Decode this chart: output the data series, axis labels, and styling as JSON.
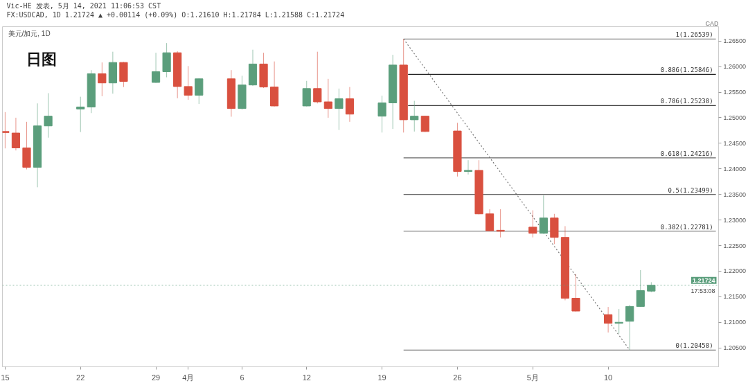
{
  "chart_data": {
    "type": "candlestick",
    "title": "Vic-HE 发表, 5月 14, 2021 11:06:53 CST",
    "subtitle": "FX:USDCAD, 1D 1.21724 ▲ +0.00114 (+0.09%) O:1.21610 H:1.21784 L:1.21588 C:1.21724",
    "ylabel": "CAD",
    "annotations": [
      "美元/加元, 1D",
      "日图",
      {
        "text": "17:53:08",
        "y": 1.21724
      }
    ],
    "x": [
      "2021-03-15",
      "2021-03-16",
      "2021-03-17",
      "2021-03-18",
      "2021-03-19",
      "2021-03-22",
      "2021-03-23",
      "2021-03-24",
      "2021-03-25",
      "2021-03-26",
      "2021-03-29",
      "2021-03-30",
      "2021-03-31",
      "2021-04-01",
      "2021-04-02",
      "2021-04-05",
      "2021-04-06",
      "2021-04-07",
      "2021-04-08",
      "2021-04-09",
      "2021-04-12",
      "2021-04-13",
      "2021-04-14",
      "2021-04-15",
      "2021-04-16",
      "2021-04-19",
      "2021-04-20",
      "2021-04-21",
      "2021-04-22",
      "2021-04-23",
      "2021-04-26",
      "2021-04-27",
      "2021-04-28",
      "2021-04-29",
      "2021-04-30",
      "2021-05-03",
      "2021-05-04",
      "2021-05-05",
      "2021-05-06",
      "2021-05-07",
      "2021-05-10",
      "2021-05-11",
      "2021-05-12",
      "2021-05-13",
      "2021-05-14"
    ],
    "ohlc": [
      [
        1.2473,
        1.2511,
        1.244,
        1.2471
      ],
      [
        1.247,
        1.25,
        1.2436,
        1.2441
      ],
      [
        1.2441,
        1.2492,
        1.2399,
        1.2403
      ],
      [
        1.2403,
        1.2528,
        1.2364,
        1.2484
      ],
      [
        1.2484,
        1.2548,
        1.2461,
        1.2503
      ],
      [
        1.2517,
        1.2541,
        1.2472,
        1.2521
      ],
      [
        1.2521,
        1.2593,
        1.2509,
        1.2586
      ],
      [
        1.2586,
        1.2608,
        1.2542,
        1.2568
      ],
      [
        1.2568,
        1.2629,
        1.2547,
        1.2608
      ],
      [
        1.2608,
        1.2609,
        1.256,
        1.2571
      ],
      [
        1.2569,
        1.2627,
        1.2568,
        1.259
      ],
      [
        1.259,
        1.2646,
        1.2579,
        1.2627
      ],
      [
        1.2627,
        1.263,
        1.2538,
        1.2561
      ],
      [
        1.2561,
        1.2601,
        1.2535,
        1.2544
      ],
      [
        1.2544,
        1.2577,
        1.2527,
        1.2576
      ],
      [
        1.2576,
        1.2593,
        1.2502,
        1.2518
      ],
      [
        1.2518,
        1.2582,
        1.2516,
        1.2564
      ],
      [
        1.2564,
        1.2633,
        1.2562,
        1.2605
      ],
      [
        1.2605,
        1.2627,
        1.2558,
        1.256
      ],
      [
        1.256,
        1.261,
        1.2522,
        1.2523
      ],
      [
        1.2523,
        1.2572,
        1.2522,
        1.2557
      ],
      [
        1.2557,
        1.2629,
        1.2528,
        1.2531
      ],
      [
        1.2531,
        1.2576,
        1.25,
        1.2518
      ],
      [
        1.2518,
        1.2557,
        1.2476,
        1.2537
      ],
      [
        1.2537,
        1.256,
        1.2492,
        1.2507
      ],
      [
        1.2503,
        1.2543,
        1.2471,
        1.2529
      ],
      [
        1.2529,
        1.2623,
        1.2478,
        1.2603
      ],
      [
        1.2603,
        1.26539,
        1.2471,
        1.2496
      ],
      [
        1.2496,
        1.2533,
        1.2473,
        1.2503
      ],
      [
        1.2503,
        1.2504,
        1.2472,
        1.2473
      ],
      [
        1.2474,
        1.249,
        1.2385,
        1.2395
      ],
      [
        1.2395,
        1.2417,
        1.2389,
        1.2397
      ],
      [
        1.2397,
        1.2417,
        1.2311,
        1.2312
      ],
      [
        1.2312,
        1.2321,
        1.2278,
        1.2279
      ],
      [
        1.228,
        1.2321,
        1.2266,
        1.2278
      ],
      [
        1.2286,
        1.2319,
        1.2266,
        1.2274
      ],
      [
        1.2274,
        1.2348,
        1.2273,
        1.2304
      ],
      [
        1.2304,
        1.2312,
        1.2253,
        1.2266
      ],
      [
        1.2266,
        1.2288,
        1.2143,
        1.2147
      ],
      [
        1.2147,
        1.2194,
        1.2121,
        1.2122
      ],
      [
        1.2115,
        1.213,
        1.208,
        1.2098
      ],
      [
        1.2098,
        1.2126,
        1.2078,
        1.21
      ],
      [
        1.2102,
        1.2134,
        1.20458,
        1.2131
      ],
      [
        1.2131,
        1.2202,
        1.213,
        1.2162
      ],
      [
        1.2161,
        1.21784,
        1.21588,
        1.21724
      ]
    ],
    "colors": [
      "#d9503f",
      "#d9503f",
      "#d9503f",
      "#5b9e7c",
      "#5b9e7c",
      "#5b9e7c",
      "#5b9e7c",
      "#d9503f",
      "#5b9e7c",
      "#d9503f",
      "#5b9e7c",
      "#5b9e7c",
      "#d9503f",
      "#d9503f",
      "#5b9e7c",
      "#d9503f",
      "#5b9e7c",
      "#5b9e7c",
      "#d9503f",
      "#d9503f",
      "#5b9e7c",
      "#d9503f",
      "#d9503f",
      "#5b9e7c",
      "#d9503f",
      "#5b9e7c",
      "#5b9e7c",
      "#d9503f",
      "#5b9e7c",
      "#d9503f",
      "#d9503f",
      "#5b9e7c",
      "#d9503f",
      "#d9503f",
      "#d9503f",
      "#d9503f",
      "#5b9e7c",
      "#d9503f",
      "#d9503f",
      "#d9503f",
      "#d9503f",
      "#5b9e7c",
      "#5b9e7c",
      "#5b9e7c",
      "#5b9e7c"
    ],
    "xlim": [
      "2021-03-14T18:00",
      "2021-05-20T06:00"
    ],
    "xticks": [
      {
        "value": "2021-03-15",
        "label": "15"
      },
      {
        "value": "2021-03-22",
        "label": "22"
      },
      {
        "value": "2021-03-29",
        "label": "29"
      },
      {
        "value": "2021-04-01",
        "label": "4月"
      },
      {
        "value": "2021-04-06",
        "label": "6"
      },
      {
        "value": "2021-04-12",
        "label": "12"
      },
      {
        "value": "2021-04-19",
        "label": "19"
      },
      {
        "value": "2021-04-26",
        "label": "26"
      },
      {
        "value": "2021-05-03",
        "label": "5月"
      },
      {
        "value": "2021-05-10",
        "label": "10"
      }
    ],
    "ylim": [
      1.2013,
      1.2678
    ],
    "yticks": [
      {
        "value": 1.205,
        "label": "1.20500"
      },
      {
        "value": 1.21,
        "label": "1.21000"
      },
      {
        "value": 1.215,
        "label": "1.21500"
      },
      {
        "value": 1.22,
        "label": "1.22000"
      },
      {
        "value": 1.225,
        "label": "1.22500"
      },
      {
        "value": 1.23,
        "label": "1.23000"
      },
      {
        "value": 1.235,
        "label": "1.23500"
      },
      {
        "value": 1.24,
        "label": "1.24000"
      },
      {
        "value": 1.245,
        "label": "1.24500"
      },
      {
        "value": 1.25,
        "label": "1.25000"
      },
      {
        "value": 1.255,
        "label": "1.25500"
      },
      {
        "value": 1.26,
        "label": "1.26000"
      },
      {
        "value": 1.265,
        "label": "1.26500"
      }
    ],
    "series": [
      {
        "type": "line",
        "x": [
          "2021-04-21",
          "2021-05-12"
        ],
        "values": [
          1.26539,
          1.20458
        ],
        "color": "#777777",
        "line_style": "dotted"
      },
      {
        "type": "line",
        "name": "1(1.26539)",
        "x": [
          "2021-04-21",
          "2021-05-20"
        ],
        "values": [
          1.26539,
          1.26539
        ],
        "color": "#888888"
      },
      {
        "type": "line",
        "name": "0.886(1.25846)",
        "x": [
          "2021-04-21T10:00",
          "2021-05-20"
        ],
        "values": [
          1.25846,
          1.25846
        ],
        "color": "#222222"
      },
      {
        "type": "line",
        "name": "0.786(1.25238)",
        "x": [
          "2021-04-21T10:00",
          "2021-05-20"
        ],
        "values": [
          1.25238,
          1.25238
        ],
        "color": "#444444"
      },
      {
        "type": "line",
        "name": "0.618(1.24216)",
        "x": [
          "2021-04-21",
          "2021-05-20"
        ],
        "values": [
          1.24216,
          1.24216
        ],
        "color": "#666666"
      },
      {
        "type": "line",
        "name": "0.5(1.23499)",
        "x": [
          "2021-04-21",
          "2021-05-20"
        ],
        "values": [
          1.23499,
          1.23499
        ],
        "color": "#333333"
      },
      {
        "type": "line",
        "name": "0.382(1.22781)",
        "x": [
          "2021-04-21",
          "2021-05-20"
        ],
        "values": [
          1.22781,
          1.22781
        ],
        "color": "#666666"
      },
      {
        "type": "line",
        "name": "0(1.20458)",
        "x": [
          "2021-04-21",
          "2021-05-20"
        ],
        "values": [
          1.20458,
          1.20458
        ],
        "color": "#777777"
      }
    ],
    "ref_lines": [
      {
        "axis": "y",
        "value": 1.21724,
        "label": "1.21724",
        "color": "#5b9e7c",
        "line_style": "dotted"
      }
    ]
  }
}
